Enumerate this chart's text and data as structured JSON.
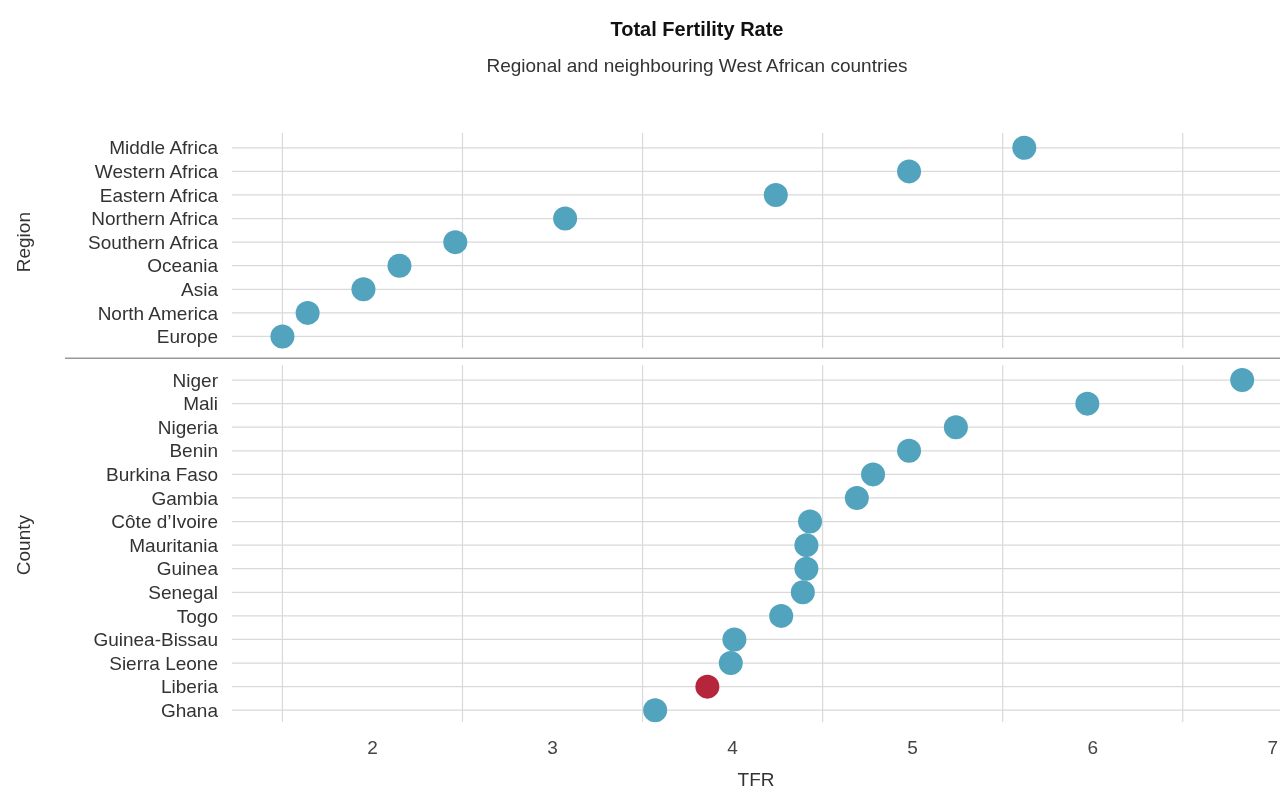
{
  "chart_data": [
    {
      "type": "scatter",
      "orientation": "horizontal",
      "title": "Total Fertility Rate",
      "subtitle": "Regional and neighbouring West African countries",
      "ylabel": "Region",
      "categories": [
        "Middle Africa",
        "Western Africa",
        "Eastern Africa",
        "Northern Africa",
        "Southern Africa",
        "Oceania",
        "Asia",
        "North America",
        "Europe"
      ],
      "values": [
        5.62,
        4.98,
        4.24,
        3.07,
        2.46,
        2.15,
        1.95,
        1.64,
        1.5
      ],
      "colors": [
        "#52a3bd",
        "#52a3bd",
        "#52a3bd",
        "#52a3bd",
        "#52a3bd",
        "#52a3bd",
        "#52a3bd",
        "#52a3bd",
        "#52a3bd"
      ],
      "xlim": [
        1.22,
        7.04
      ],
      "xticks": [
        {
          "value": 1.5,
          "label": null
        },
        2,
        {
          "value": 2.5,
          "label": null
        },
        3,
        {
          "value": 3.5,
          "label": null
        },
        4,
        {
          "value": 4.5,
          "label": null
        },
        5,
        {
          "value": 5.5,
          "label": null
        },
        6,
        {
          "value": 6.5,
          "label": null
        },
        7
      ],
      "tick_labels": "y",
      "grid": true,
      "marker": "circle"
    },
    {
      "type": "scatter",
      "orientation": "horizontal",
      "xlabel": "TFR",
      "ylabel": "County",
      "categories": [
        "Niger",
        "Mali",
        "Nigeria",
        "Benin",
        "Burkina Faso",
        "Gambia",
        "Côte d’Ivoire",
        "Mauritania",
        "Guinea",
        "Senegal",
        "Togo",
        "Guinea-Bissau",
        "Sierra Leone",
        "Liberia",
        "Ghana"
      ],
      "values": [
        6.83,
        5.97,
        5.24,
        4.98,
        4.78,
        4.69,
        4.43,
        4.41,
        4.41,
        4.39,
        4.27,
        4.01,
        3.99,
        3.86,
        3.57
      ],
      "colors": [
        "#52a3bd",
        "#52a3bd",
        "#52a3bd",
        "#52a3bd",
        "#52a3bd",
        "#52a3bd",
        "#52a3bd",
        "#52a3bd",
        "#52a3bd",
        "#52a3bd",
        "#52a3bd",
        "#52a3bd",
        "#52a3bd",
        "#b5253c",
        "#52a3bd"
      ],
      "xlim": [
        1.22,
        7.04
      ],
      "xticks": [
        {
          "value": 1.5,
          "label": null
        },
        2,
        {
          "value": 2.5,
          "label": null
        },
        3,
        {
          "value": 3.5,
          "label": null
        },
        4,
        {
          "value": 4.5,
          "label": null
        },
        5,
        {
          "value": 5.5,
          "label": null
        },
        6,
        {
          "value": 6.5,
          "label": null
        },
        7
      ],
      "grid": true,
      "marker": "circle"
    }
  ]
}
